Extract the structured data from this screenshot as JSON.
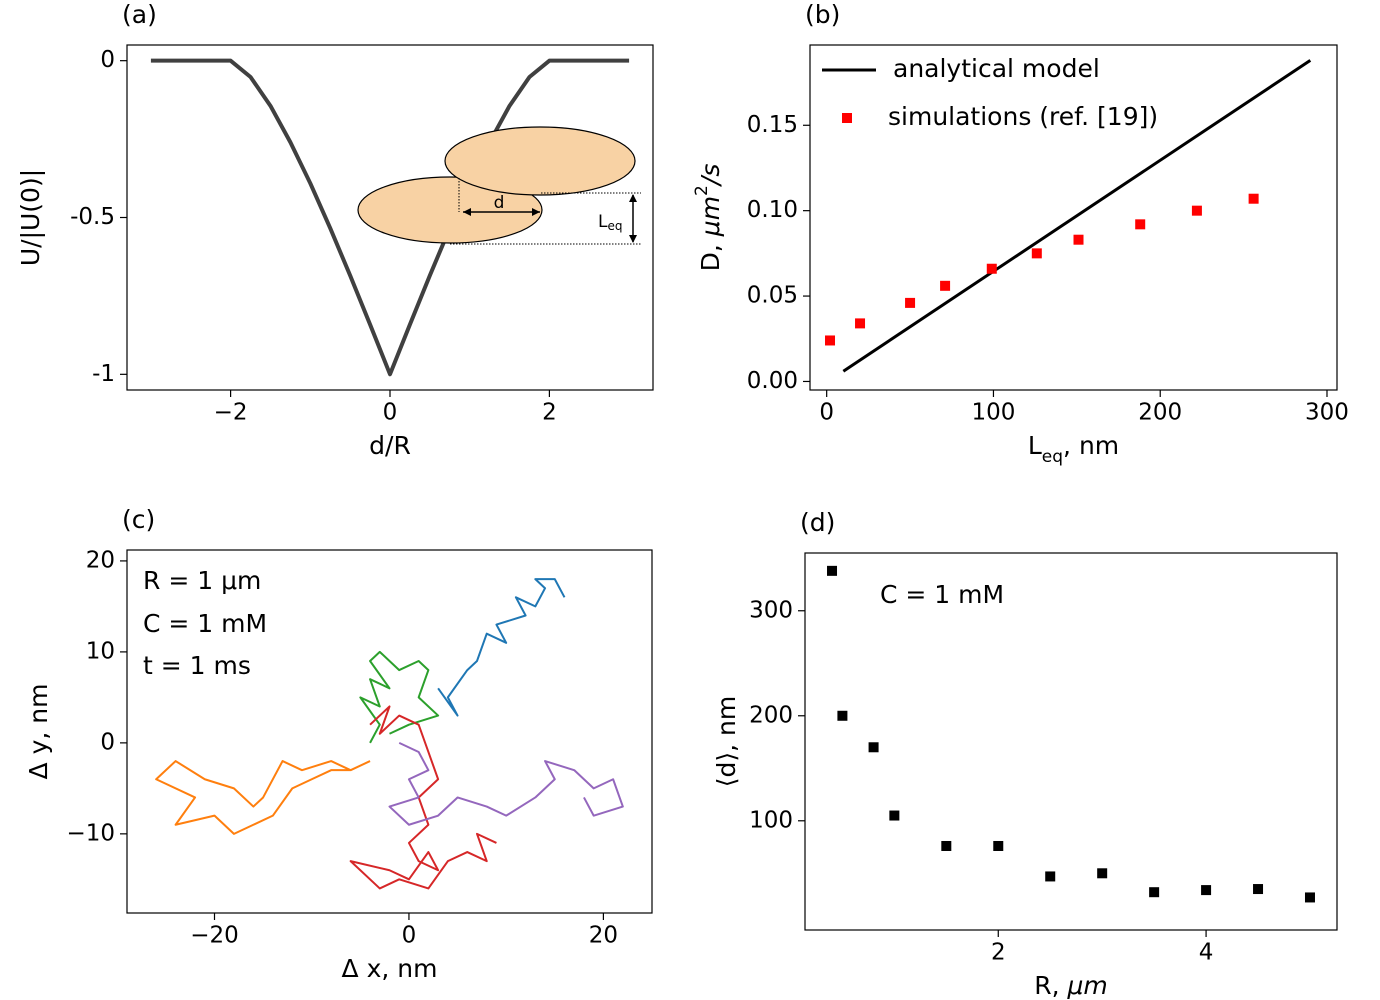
{
  "chart_data": [
    {
      "type": "line",
      "title": "(a)",
      "xlabel": "d/R",
      "ylabel": "U/|U(0)|",
      "x": [
        -3,
        -2,
        -1.75,
        -1.5,
        -1.25,
        -1,
        -0.75,
        -0.5,
        -0.25,
        0,
        0.25,
        0.5,
        0.75,
        1,
        1.25,
        1.5,
        1.75,
        2,
        3
      ],
      "series": [
        {
          "color": "#404040",
          "mode": "line",
          "values": [
            0,
            0,
            -0.052,
            -0.144,
            -0.26,
            -0.391,
            -0.534,
            -0.685,
            -0.841,
            -1,
            -0.841,
            -0.685,
            -0.534,
            -0.391,
            -0.26,
            -0.144,
            -0.052,
            0,
            0
          ]
        }
      ],
      "xlim": [
        -3.3,
        3.3
      ],
      "ylim": [
        -1.05,
        0.05
      ],
      "xticks": [
        {
          "value": -2,
          "label": "−2"
        },
        0,
        2
      ],
      "yticks": [
        0,
        -0.5,
        -1
      ],
      "inset_labels": {
        "d": "d",
        "L": "L",
        "sub": "eq"
      }
    },
    {
      "type": "line",
      "title": "(b)",
      "xlabel": [
        {
          "text": "L"
        },
        {
          "text": "eq",
          "style": "sub"
        },
        {
          "text": ", nm"
        }
      ],
      "ylabel": [
        {
          "text": "D,  "
        },
        {
          "text": "μm",
          "style": "italic"
        },
        {
          "text": "2",
          "style": "sup"
        },
        {
          "text": "/s",
          "style": "italic"
        }
      ],
      "series": [
        {
          "name": "analytical model",
          "color": "#000000",
          "mode": "line",
          "x": [
            10,
            290
          ],
          "values": [
            0.006,
            0.188
          ]
        },
        {
          "name": "simulations (ref. [19])",
          "color": "#ff0000",
          "mode": "markers",
          "x": [
            2,
            20,
            50,
            71,
            99,
            126,
            151,
            188,
            222,
            256
          ],
          "values": [
            0.024,
            0.034,
            0.046,
            0.056,
            0.066,
            0.075,
            0.083,
            0.092,
            0.1,
            0.107
          ]
        }
      ],
      "xlim": [
        -10,
        306
      ],
      "ylim": [
        -0.005,
        0.197
      ],
      "xticks": [
        0,
        100,
        200,
        300
      ],
      "yticks": [
        {
          "value": 0,
          "label": "0.00"
        },
        {
          "value": 0.05,
          "label": "0.05"
        },
        {
          "value": 0.1,
          "label": "0.10"
        },
        {
          "value": 0.15,
          "label": "0.15"
        }
      ],
      "legend": "upper left"
    },
    {
      "type": "line",
      "title": "(c)",
      "xlabel": "Δ x, nm",
      "ylabel": "Δ y, nm",
      "annotations": [
        "R = 1 μm",
        "C = 1 mM",
        "t = 1 ms"
      ],
      "series": [
        {
          "color": "#1f77b4",
          "mode": "line",
          "x": [
            3,
            5,
            4,
            6,
            7,
            8,
            10,
            9,
            12,
            11,
            13,
            14,
            13,
            15,
            16
          ],
          "values": [
            6,
            3,
            5,
            8,
            9,
            12,
            11,
            13,
            14,
            16,
            15,
            17,
            18,
            18,
            16
          ]
        },
        {
          "color": "#2ca02c",
          "mode": "line",
          "x": [
            -4,
            -3,
            -5,
            -3,
            -4,
            -2,
            -4,
            -3,
            -1,
            1,
            2,
            1,
            3,
            0,
            -2
          ],
          "values": [
            0,
            2,
            5,
            4,
            7,
            6,
            9,
            10,
            8,
            9,
            8,
            5,
            3,
            2,
            1
          ]
        },
        {
          "color": "#d62728",
          "mode": "line",
          "x": [
            -4,
            -2,
            -3,
            -1,
            1,
            2,
            3,
            1,
            2,
            0,
            1,
            3,
            2,
            0,
            -2,
            -6,
            -3,
            -1,
            2,
            4,
            6,
            8,
            7,
            9
          ],
          "values": [
            2,
            4,
            1,
            3,
            2,
            -1,
            -4,
            -6,
            -9,
            -11,
            -13,
            -14,
            -12,
            -15,
            -14,
            -13,
            -16,
            -15,
            -16,
            -13,
            -12,
            -13,
            -10,
            -11
          ]
        },
        {
          "color": "#ff7f0e",
          "mode": "line",
          "x": [
            -4,
            -6,
            -8,
            -11,
            -13,
            -15,
            -16,
            -18,
            -21,
            -24,
            -26,
            -22,
            -24,
            -20,
            -18,
            -16,
            -14,
            -12,
            -10,
            -8,
            -6
          ],
          "values": [
            -2,
            -3,
            -2,
            -3,
            -2,
            -6,
            -7,
            -5,
            -4,
            -2,
            -4,
            -6,
            -9,
            -8,
            -10,
            -9,
            -8,
            -5,
            -4,
            -3,
            -3
          ]
        },
        {
          "color": "#9467bd",
          "mode": "line",
          "x": [
            -1,
            1,
            2,
            0,
            1,
            -2,
            0,
            3,
            5,
            8,
            10,
            13,
            15,
            14,
            17,
            19,
            21,
            22,
            19,
            18
          ],
          "values": [
            0,
            -1,
            -3,
            -4,
            -6,
            -7,
            -9,
            -8,
            -6,
            -7,
            -8,
            -6,
            -4,
            -2,
            -3,
            -5,
            -4,
            -7,
            -8,
            -6
          ]
        }
      ],
      "xlim": [
        -29,
        25
      ],
      "ylim": [
        -18.7,
        21.2
      ],
      "xticks": [
        {
          "value": -20,
          "label": "−20"
        },
        0,
        20
      ],
      "yticks": [
        {
          "value": -10,
          "label": "−10"
        },
        0,
        10,
        20
      ]
    },
    {
      "type": "scatter",
      "title": "(d)",
      "xlabel": [
        {
          "text": "R, "
        },
        {
          "text": "μm",
          "style": "italic"
        }
      ],
      "ylabel": "⟨d⟩, nm",
      "annotations": [
        "C = 1 mM"
      ],
      "series": [
        {
          "color": "#000000",
          "mode": "markers",
          "x": [
            0.4,
            0.5,
            0.8,
            1,
            1.5,
            2,
            2.5,
            3,
            3.5,
            4,
            4.5,
            5
          ],
          "values": [
            338,
            200,
            170,
            105,
            76,
            76,
            47,
            50,
            32,
            34,
            35,
            27
          ]
        }
      ],
      "xlim": [
        0.14,
        5.26
      ],
      "ylim": [
        -4,
        355
      ],
      "xticks": [
        2,
        4
      ],
      "yticks": [
        100,
        200,
        300
      ]
    }
  ]
}
